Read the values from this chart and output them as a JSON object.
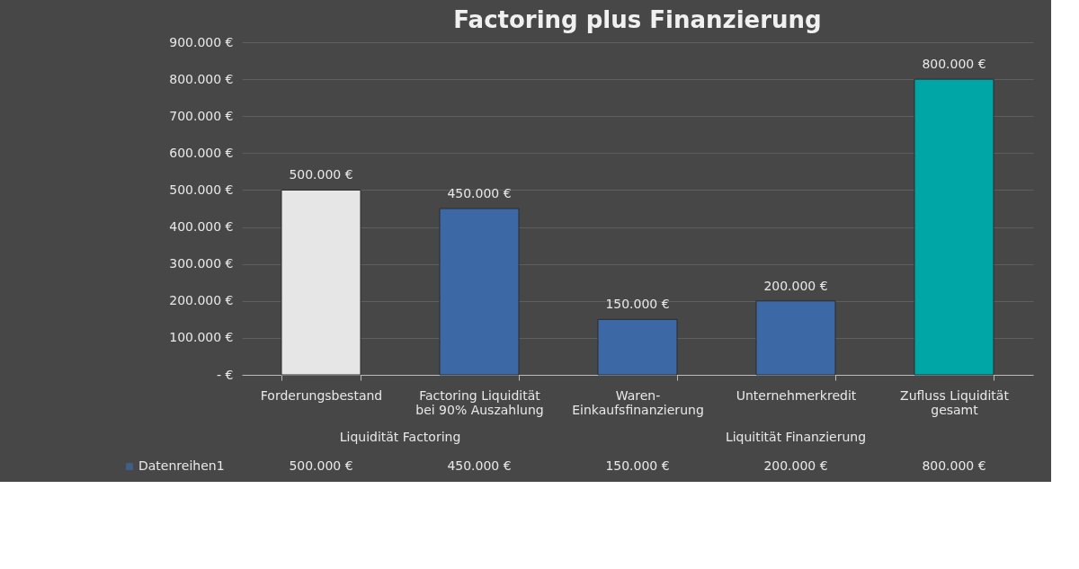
{
  "chart_data": {
    "type": "bar",
    "title": "Factoring plus Finanzierung",
    "categories": [
      "Forderungsbestand",
      "Factoring Liquidität bei 90% Auszahlung",
      "Waren-Einkaufsfinanzierung",
      "Unternehmerkredit",
      "Zufluss Liquidität gesamt"
    ],
    "series": [
      {
        "name": "Datenreihen1",
        "color": "#3d68a6",
        "colors": [
          "#e6e6e6",
          "#3d68a6",
          "#3d68a6",
          "#3d68a6",
          "#00a6a6"
        ],
        "values": [
          500000,
          450000,
          150000,
          200000,
          800000
        ],
        "value_labels": [
          "500.000 €",
          "450.000 €",
          "150.000 €",
          "200.000 €",
          "800.000 €"
        ]
      }
    ],
    "ylim": [
      0,
      900000
    ],
    "yticks": [
      {
        "value": 0,
        "label": "-   €"
      },
      {
        "value": 100000,
        "label": "100.000 €"
      },
      {
        "value": 200000,
        "label": "200.000 €"
      },
      {
        "value": 300000,
        "label": "300.000 €"
      },
      {
        "value": 400000,
        "label": "400.000 €"
      },
      {
        "value": 500000,
        "label": "500.000 €"
      },
      {
        "value": 600000,
        "label": "600.000 €"
      },
      {
        "value": 700000,
        "label": "700.000 €"
      },
      {
        "value": 800000,
        "label": "800.000 €"
      },
      {
        "value": 900000,
        "label": "900.000 €"
      }
    ],
    "annotations": [
      "Liquidität Factoring",
      "Liquitität Finanzierung"
    ],
    "grid": "y",
    "legend": "bottom"
  }
}
